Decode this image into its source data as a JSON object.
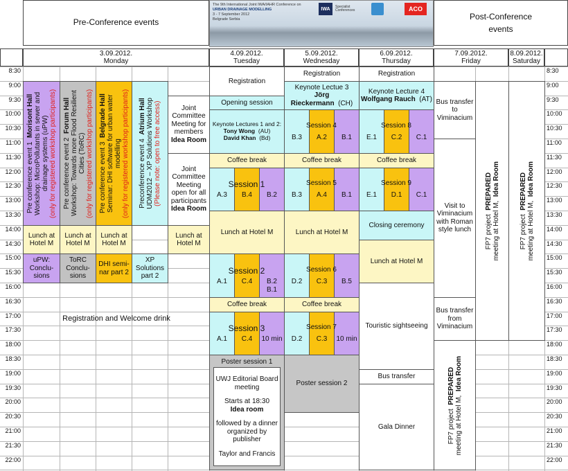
{
  "header": {
    "pre": "Pre-Conference events",
    "post": "Post-Conference events",
    "banner": [
      "The 9th International Joint IWA/IAHR Conference on",
      "URBAN DRAINAGE MODELLING",
      "3 - 7 September 2012",
      "Belgrade Serbia"
    ],
    "logos": [
      "IWA",
      "Specialist Conferences",
      "ACO"
    ]
  },
  "days": [
    {
      "date": "3.09.2012.",
      "day": "Monday"
    },
    {
      "date": "4.09.2012.",
      "day": "Tuesday"
    },
    {
      "date": "5.09.2012.",
      "day": "Wednesday"
    },
    {
      "date": "6.09.2012.",
      "day": "Thursday"
    },
    {
      "date": "7.09.2012.",
      "day": "Friday"
    },
    {
      "date": "8.09.2012.",
      "day": "Saturday"
    }
  ],
  "times": [
    "8:30",
    "9:00",
    "9:30",
    "10:00",
    "10:30",
    "11:00",
    "11:30",
    "12:00",
    "12:30",
    "13:00",
    "13:30",
    "14:00",
    "14:30",
    "15:00",
    "15:30",
    "16:00",
    "16:30",
    "17:00",
    "17:30",
    "18:00",
    "18:30",
    "19:00",
    "19:30",
    "20:00",
    "20:30",
    "21:00",
    "21:30",
    "22:00"
  ],
  "events": [
    {
      "lines": [
        "Pre conference event 1",
        "Morisont Hall",
        "Workshop: MicroPollutants in sewer and drainage systems (uPW)",
        "(only for registered workshop participants)"
      ]
    },
    {
      "lines": [
        "Pre conference event 2",
        "Forum Hall",
        "Workshop: Towards more Flood Resilient Cities (ToRC)",
        "(only for registered workshop participants)"
      ]
    },
    {
      "lines": [
        "Pre conference event 3",
        "Belgrade Hall",
        "Seminar: DHI software for urban water modelling",
        "(only for registered workshop participants)"
      ]
    },
    {
      "lines": [
        "Preconference event 4",
        "Atrium Hall",
        "UDM2012 – XP Solutions Workshop",
        "(Please note: open to free access)"
      ]
    },
    {
      "lines": [
        "Joint Committee Meeting for members",
        "Idea Room"
      ]
    },
    {
      "lines": [
        "Joint Committee Meeting open for all participants",
        "Idea Room"
      ]
    },
    {
      "lines": [
        "Lunch at Hotel M"
      ]
    },
    {
      "lines": [
        "Lunch at Hotel M"
      ]
    },
    {
      "lines": [
        "Lunch at Hotel M"
      ]
    },
    {
      "lines": [
        "Lunch at Hotel M"
      ]
    },
    {
      "lines": [
        "uPW:",
        "Conclu-",
        "sions"
      ]
    },
    {
      "lines": [
        "ToRC",
        "Conclu-",
        "sions"
      ]
    },
    {
      "lines": [
        "DHI semi-",
        "nar part 2"
      ]
    },
    {
      "lines": [
        "XP",
        "Solutions",
        "part 2"
      ]
    },
    {
      "lines": [
        "Registration and Welcome drink"
      ]
    },
    {
      "lines": [
        "Registration"
      ]
    },
    {
      "lines": [
        "Opening session"
      ]
    },
    {
      "lines": [
        "Keynote Lectures 1 and 2:",
        "Tony Wong",
        "(AU)",
        "David Khan",
        "(Bd)"
      ]
    },
    {
      "lines": [
        "Coffee break"
      ]
    },
    {
      "lines": [
        "Lunch at Hotel M"
      ]
    },
    {
      "lines": [
        "Coffee break"
      ]
    },
    {
      "lines": [
        "Poster session 1"
      ]
    },
    {
      "lines": [
        "UWJ Editorial Board meeting",
        "Starts at 18:30",
        "Idea room",
        "followed by a dinner organized by publisher",
        "Taylor and Francis"
      ]
    },
    {
      "lines": [
        "Registration"
      ]
    },
    {
      "lines": [
        "Keynote Lectue 3",
        "Jörg Rieckermann",
        "(CH)"
      ]
    },
    {
      "lines": [
        "Coffee break"
      ]
    },
    {
      "lines": [
        "Lunch at Hotel M"
      ]
    },
    {
      "lines": [
        "Coffee break"
      ]
    },
    {
      "lines": [
        "Poster session 2"
      ]
    },
    {
      "lines": [
        "Registration"
      ]
    },
    {
      "lines": [
        "Keynote Lecture 4",
        "Wolfgang Rauch",
        "(AT)"
      ]
    },
    {
      "lines": [
        "Coffee break"
      ]
    },
    {
      "lines": [
        "Closing ceremony"
      ]
    },
    {
      "lines": [
        "Lunch at Hotel M"
      ]
    },
    {
      "lines": [
        "Touristic sightseeing"
      ]
    },
    {
      "lines": [
        "Bus transfer"
      ]
    },
    {
      "lines": [
        "Gala Dinner"
      ]
    },
    {
      "lines": [
        "Bus transfer to Viminacium"
      ]
    },
    {
      "lines": [
        "Visit to Viminacium with Roman style lunch"
      ]
    },
    {
      "lines": [
        "Bus transfer from Viminacium"
      ]
    },
    {
      "lines": [
        "FP7 project",
        "PREPARED",
        "meeting at Hotel M,",
        "Idea Room"
      ]
    },
    {
      "lines": [
        "FP7 project",
        "PREPARED",
        "meeting at Hotel M,",
        "Idea Room"
      ]
    },
    {
      "lines": [
        "FP7 project",
        "PREPARED",
        "meeting at Hotel M,",
        "Idea Room"
      ]
    }
  ],
  "sessions": [
    {
      "title": "Session 1",
      "rooms": [
        [
          "A.3"
        ],
        [
          "B.4"
        ],
        [
          "B.2"
        ]
      ]
    },
    {
      "title": "Session 2",
      "rooms": [
        [
          "A.1"
        ],
        [
          "C.4"
        ],
        [
          "B.2",
          "B.1"
        ]
      ]
    },
    {
      "title": "Session 3",
      "rooms": [
        [
          "A.1"
        ],
        [
          "C.4"
        ],
        [
          "10 min"
        ]
      ]
    },
    {
      "title": "Session 4",
      "rooms": [
        [
          "B.3"
        ],
        [
          "A.2"
        ],
        [
          "B.1"
        ]
      ]
    },
    {
      "title": "Session 5",
      "rooms": [
        [
          "B.3"
        ],
        [
          "A.4"
        ],
        [
          "B.1"
        ]
      ]
    },
    {
      "title": "Session 6",
      "rooms": [
        [
          "D.2"
        ],
        [
          "C.3"
        ],
        [
          "B.5"
        ]
      ]
    },
    {
      "title": "Session 7",
      "rooms": [
        [
          "D.2"
        ],
        [
          "C.3"
        ],
        [
          "10 min"
        ]
      ]
    },
    {
      "title": "Session 8",
      "rooms": [
        [
          "E.1"
        ],
        [
          "C.2"
        ],
        [
          "C.1"
        ]
      ]
    },
    {
      "title": "Session 9",
      "rooms": [
        [
          "E.1"
        ],
        [
          "D.1"
        ],
        [
          "C.1"
        ]
      ]
    }
  ]
}
